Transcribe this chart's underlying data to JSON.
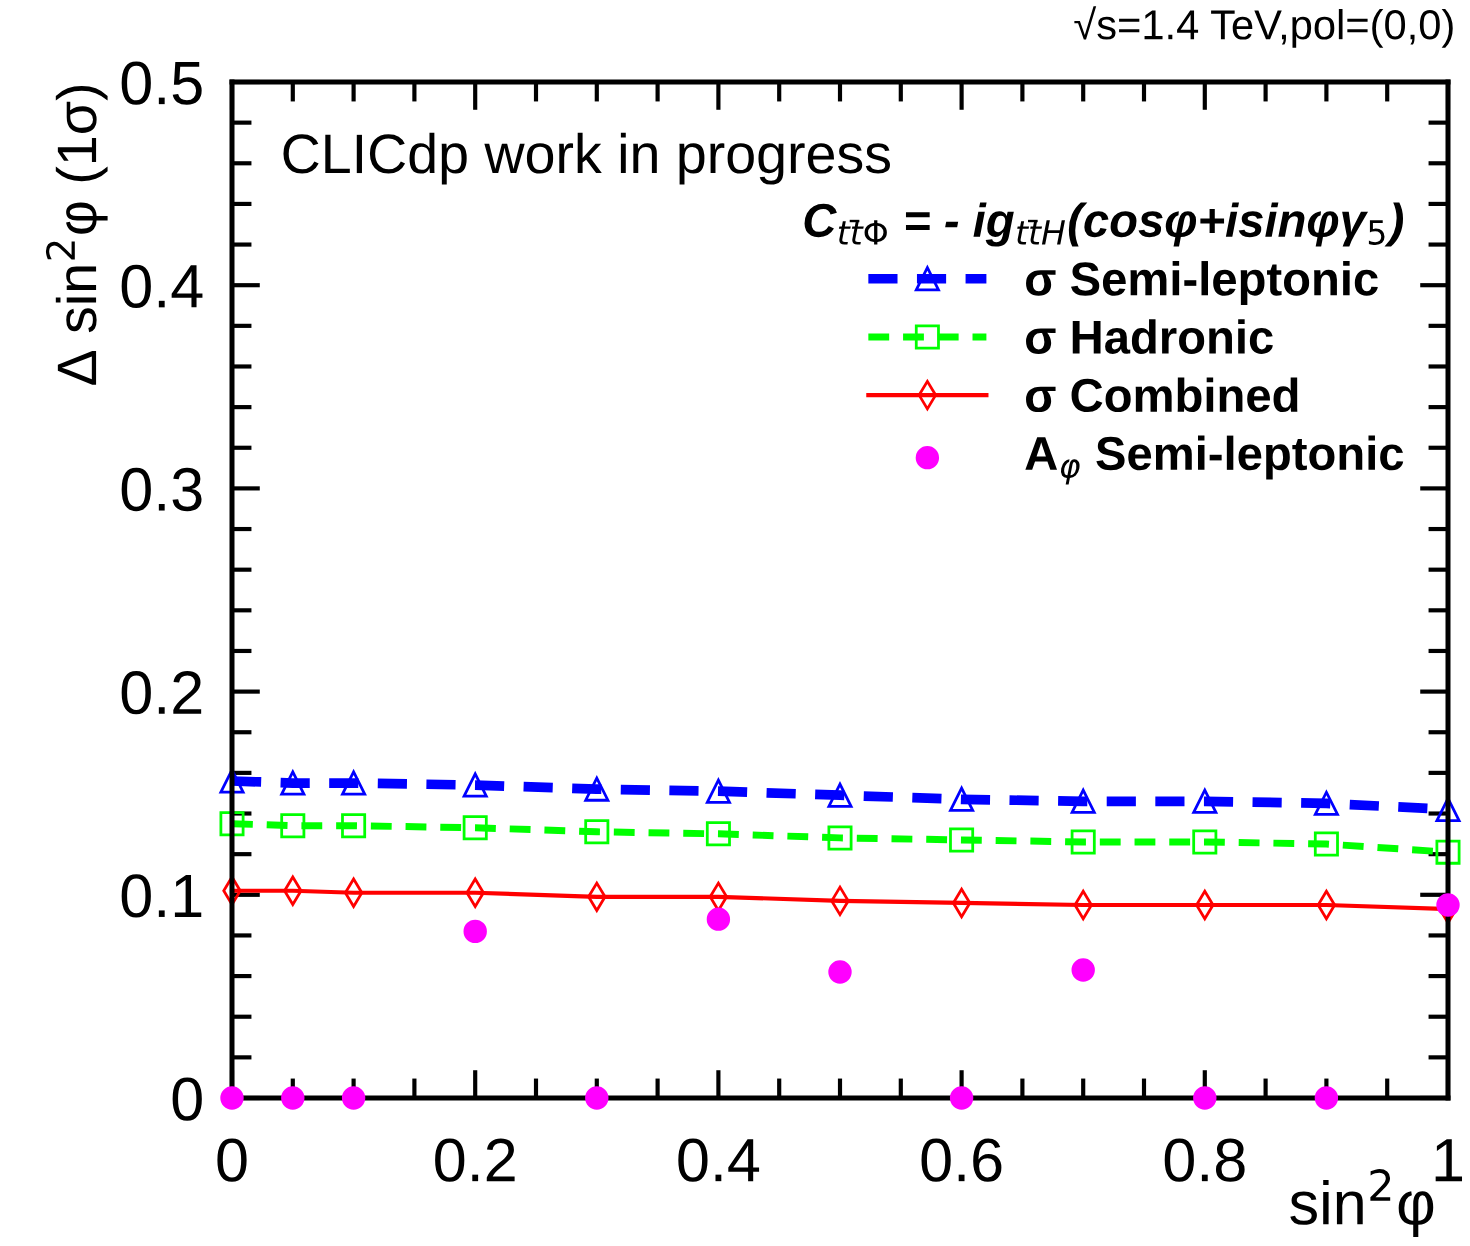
{
  "chart_data": {
    "type": "line",
    "title": "√s=1.4 TeV,pol=(0,0)",
    "xlabel": "sin$^{2}$φ",
    "ylabel": "Δ sin$^{2}$φ (1σ)",
    "legend_title": "C$_{tt̄Φ}$ = - ig$_{tt̄H}$(cosφ+isinφγ$_{5}$)",
    "annotations": [
      "CLICdp work in progress"
    ],
    "x": [
      0,
      0.05,
      0.1,
      0.2,
      0.3,
      0.4,
      0.5,
      0.6,
      0.7,
      0.8,
      0.9,
      1
    ],
    "series": [
      {
        "name": "σ Semi-leptonic",
        "color": "#0000ff",
        "marker": "triangle",
        "line_style": "dashed",
        "values": [
          0.156,
          0.155,
          0.155,
          0.154,
          0.152,
          0.151,
          0.149,
          0.147,
          0.146,
          0.146,
          0.145,
          0.142
        ]
      },
      {
        "name": "σ Hadronic",
        "color": "#00ff00",
        "marker": "square",
        "line_style": "dashed",
        "values": [
          0.135,
          0.134,
          0.134,
          0.133,
          0.131,
          0.13,
          0.128,
          0.127,
          0.126,
          0.126,
          0.125,
          0.121
        ]
      },
      {
        "name": "σ Combined",
        "color": "#ff0000",
        "marker": "diamond",
        "line_style": "solid",
        "values": [
          0.102,
          0.102,
          0.101,
          0.101,
          0.099,
          0.099,
          0.097,
          0.096,
          0.095,
          0.095,
          0.095,
          0.093
        ]
      },
      {
        "name": "A$_{φ}$ Semi-leptonic",
        "type": "scatter",
        "color": "#ff00ff",
        "marker": "circle",
        "values": [
          0,
          0,
          0,
          0.082,
          0,
          0.088,
          0.062,
          0,
          0.063,
          0,
          0,
          0.095
        ]
      }
    ],
    "xlim": [
      0,
      1
    ],
    "xticks": [
      0,
      0.2,
      0.4,
      0.6,
      0.8,
      1
    ],
    "ylim": [
      0,
      0.5
    ],
    "yticks": [
      0,
      0.1,
      0.2,
      0.3,
      0.4,
      0.5
    ],
    "grid": false,
    "legend": "top right"
  }
}
